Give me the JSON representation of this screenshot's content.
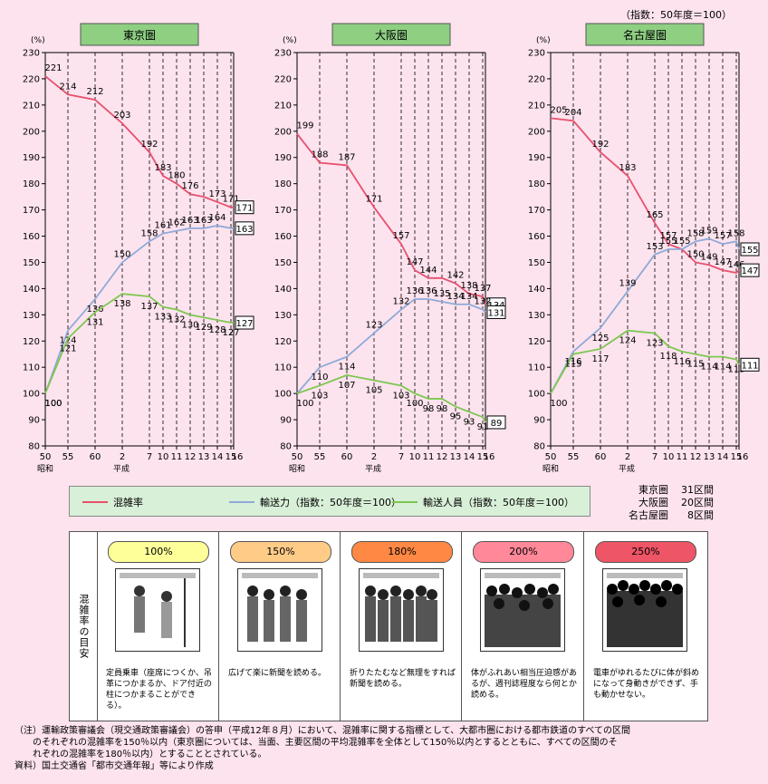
{
  "index_note": "（指数：50年度＝100）",
  "chart_data": [
    {
      "type": "line",
      "title": "東京圏",
      "ylabel": "(%)",
      "ylim": [
        80,
        230
      ],
      "yticks": [
        80,
        90,
        100,
        110,
        120,
        130,
        140,
        150,
        160,
        170,
        180,
        190,
        200,
        210,
        220,
        230
      ],
      "x": [
        50,
        55,
        60,
        2,
        7,
        10,
        11,
        12,
        13,
        14,
        15,
        16
      ],
      "era_labels": [
        "昭和",
        "平成"
      ],
      "series": [
        {
          "name": "混雑率",
          "color": "#e8506e",
          "values": [
            221,
            214,
            212,
            203,
            192,
            183,
            180,
            176,
            175,
            173,
            171,
            171
          ],
          "labels": [
            "221",
            "214",
            "212",
            "203",
            "192",
            "183",
            "180",
            "176",
            "",
            "173",
            "171",
            ""
          ],
          "end_label": "171"
        },
        {
          "name": "輸送力（指数：50年度＝100）",
          "color": "#8eaad8",
          "values": [
            100,
            124,
            136,
            150,
            158,
            161,
            162,
            163,
            163,
            164,
            163,
            163
          ],
          "labels": [
            "100",
            "124",
            "136",
            "150",
            "158",
            "161",
            "162",
            "163",
            "163",
            "164",
            "",
            ""
          ],
          "end_label": "163"
        },
        {
          "name": "輸送人員（指数：50年度＝100）",
          "color": "#7dc850",
          "values": [
            100,
            121,
            131,
            138,
            137,
            133,
            132,
            130,
            129,
            128,
            127,
            127
          ],
          "labels": [
            "100",
            "121",
            "131",
            "138",
            "137",
            "133",
            "132",
            "130",
            "129",
            "128",
            "127",
            ""
          ],
          "end_label": "127"
        }
      ]
    },
    {
      "type": "line",
      "title": "大阪圏",
      "ylabel": "(%)",
      "ylim": [
        80,
        230
      ],
      "yticks": [
        80,
        90,
        100,
        110,
        120,
        130,
        140,
        150,
        160,
        170,
        180,
        190,
        200,
        210,
        220,
        230
      ],
      "x": [
        50,
        55,
        60,
        2,
        7,
        10,
        11,
        12,
        13,
        14,
        15,
        16
      ],
      "era_labels": [
        "昭和",
        "平成"
      ],
      "series": [
        {
          "name": "混雑率",
          "color": "#e8506e",
          "values": [
            199,
            188,
            187,
            171,
            157,
            147,
            144,
            144,
            142,
            138,
            137,
            134
          ],
          "labels": [
            "199",
            "188",
            "187",
            "171",
            "157",
            "147",
            "144",
            "",
            "142",
            "138",
            "137",
            ""
          ],
          "end_label": "134"
        },
        {
          "name": "輸送力（指数：50年度＝100）",
          "color": "#8eaad8",
          "values": [
            100,
            110,
            114,
            123,
            132,
            136,
            136,
            135,
            134,
            134,
            132,
            131
          ],
          "labels": [
            "",
            "110",
            "114",
            "123",
            "132",
            "136",
            "136",
            "135",
            "134",
            "134",
            "132",
            ""
          ],
          "end_label": "131"
        },
        {
          "name": "輸送人員（指数：50年度＝100）",
          "color": "#7dc850",
          "values": [
            100,
            103,
            107,
            105,
            103,
            100,
            98,
            98,
            95,
            93,
            91,
            89
          ],
          "labels": [
            "100",
            "103",
            "107",
            "105",
            "103",
            "100",
            "98",
            "98",
            "95",
            "93",
            "91",
            ""
          ],
          "end_label": "89"
        }
      ]
    },
    {
      "type": "line",
      "title": "名古屋圏",
      "ylabel": "(%)",
      "ylim": [
        80,
        230
      ],
      "yticks": [
        80,
        90,
        100,
        110,
        120,
        130,
        140,
        150,
        160,
        170,
        180,
        190,
        200,
        210,
        220,
        230
      ],
      "x": [
        50,
        55,
        60,
        2,
        7,
        10,
        11,
        12,
        13,
        14,
        15,
        16
      ],
      "era_labels": [
        "昭和",
        "平成"
      ],
      "series": [
        {
          "name": "混雑率",
          "color": "#e8506e",
          "values": [
            205,
            204,
            192,
            183,
            165,
            157,
            155,
            150,
            149,
            147,
            146,
            147
          ],
          "labels": [
            "205",
            "204",
            "192",
            "183",
            "165",
            "157",
            "155",
            "150",
            "149",
            "147",
            "146",
            ""
          ],
          "end_label": "147"
        },
        {
          "name": "輸送力（指数：50年度＝100）",
          "color": "#8eaad8",
          "values": [
            100,
            116,
            125,
            139,
            153,
            155,
            155,
            158,
            159,
            157,
            158,
            155
          ],
          "labels": [
            "100",
            "116",
            "125",
            "139",
            "153",
            "155",
            "",
            "158",
            "159",
            "157",
            "158",
            ""
          ],
          "end_label": "155"
        },
        {
          "name": "輸送人員（指数：50年度＝100）",
          "color": "#7dc850",
          "values": [
            100,
            115,
            117,
            124,
            123,
            118,
            116,
            115,
            114,
            114,
            113,
            111
          ],
          "labels": [
            "",
            "115",
            "117",
            "124",
            "123",
            "118",
            "116",
            "115",
            "114",
            "114",
            "113",
            ""
          ],
          "end_label": "111"
        }
      ]
    }
  ],
  "legend": [
    {
      "label": "混雑率",
      "color": "#e8506e"
    },
    {
      "label": "輸送力（指数：50年度＝100）",
      "color": "#8eaad8"
    },
    {
      "label": "輸送人員（指数：50年度＝100）",
      "color": "#7dc850"
    }
  ],
  "regions": [
    {
      "name": "東京圏",
      "sections": "31区間"
    },
    {
      "name": "大阪圏",
      "sections": "20区間"
    },
    {
      "name": "名古屋圏",
      "sections": "8区間"
    }
  ],
  "guide": {
    "label": "混雑率の目安",
    "items": [
      {
        "level": "100%",
        "color": "#ffff99",
        "text": "定員乗車（座席につくか、吊革につかまるか、ドア付近の柱につかまることができる）。"
      },
      {
        "level": "150%",
        "color": "#ffcc88",
        "text": "広げて楽に新聞を読める。"
      },
      {
        "level": "180%",
        "color": "#ff8844",
        "text": "折りたたむなど無理をすれば新聞を読める。"
      },
      {
        "level": "200%",
        "color": "#ff8899",
        "text": "体がふれあい相当圧迫感があるが、週刊誌程度なら何とか読める。"
      },
      {
        "level": "250%",
        "color": "#ee5566",
        "text": "電車がゆれるたびに体が斜めになって身動きができず、手も動かせない。"
      }
    ]
  },
  "note": {
    "line1": "（注）運輸政策審議会（現交通政策審議会）の答申（平成12年８月）において、混雑率に関する指標として、大都市圏における都市鉄道のすべての区間",
    "line2": "　　のそれぞれの混雑率を150％以内（東京圏については、当面、主要区間の平均混雑率を全体として150％以内とするとともに、すべての区間のそ",
    "line3": "　　れぞれの混雑率を180％以内）とすることとされている。",
    "line4": "資料）国土交通省「都市交通年報」等により作成"
  }
}
